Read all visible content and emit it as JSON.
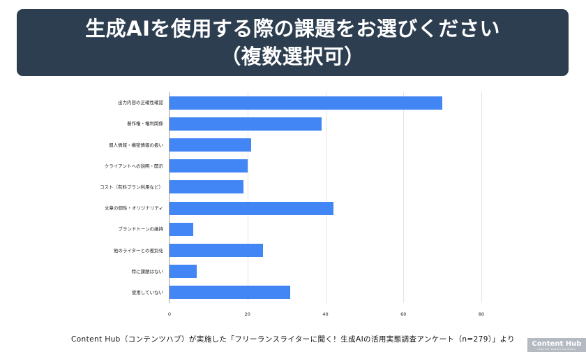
{
  "header": {
    "title_line1": "生成AIを使用する際の課題をお選びください",
    "title_line2": "（複数選択可）",
    "background_color": "#2d3e50"
  },
  "chart_data": {
    "type": "bar",
    "orientation": "horizontal",
    "title": "生成AIを使用する際の課題をお選びください（複数選択可）",
    "xlabel": "",
    "ylabel": "",
    "categories": [
      "出力内容の正確性確認",
      "著作権・権利関係",
      "個人情報・機密情報の扱い",
      "クライアントへの説明・開示",
      "コスト（有料プラン利用など）",
      "文章の個性・オリジナリティ",
      "ブランドトーンの維持",
      "他のライターとの差別化",
      "特に課題はない",
      "使用していない"
    ],
    "values": [
      70,
      39,
      21,
      20,
      19,
      42,
      6,
      24,
      7,
      31
    ],
    "xlim": [
      0,
      80
    ],
    "x_ticks": [
      "0",
      "20",
      "40",
      "60",
      "80"
    ],
    "grid": true,
    "legend": "none",
    "bar_color": "#4285f4"
  },
  "footer": {
    "source": "Content Hub（コンテンツハブ）が実施した「フリーランスライターに聞く！生成AIの活用実態調査アンケート（n=279）」より"
  },
  "watermark": {
    "title": "Content Hub",
    "subtitle": "CONTENT MARKETING MEDIA"
  }
}
